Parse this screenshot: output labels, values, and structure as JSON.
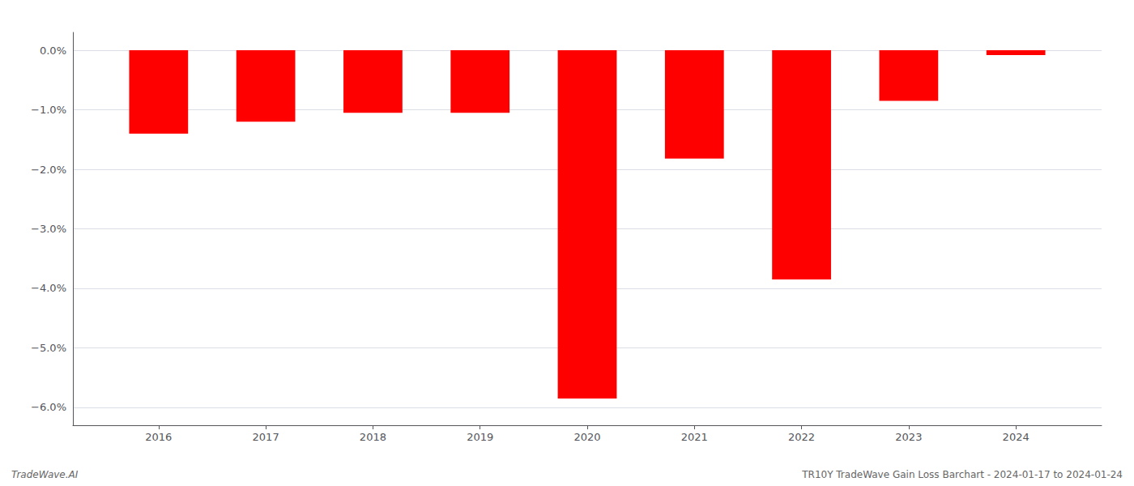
{
  "chart_data": {
    "type": "bar",
    "x": [
      2016,
      2017,
      2018,
      2019,
      2020,
      2021,
      2022,
      2023,
      2024
    ],
    "values": [
      -1.4,
      -1.2,
      -1.05,
      -1.05,
      -5.85,
      -1.82,
      -3.85,
      -0.85,
      -0.08
    ],
    "color": "#ff0000",
    "xlim": [
      2015.2,
      2024.8
    ],
    "xticks": [
      2016,
      2017,
      2018,
      2019,
      2020,
      2021,
      2022,
      2023,
      2024
    ],
    "ylim": [
      -6.3,
      0.3
    ],
    "yticks": [
      {
        "value": 0.0,
        "label": "0.0%"
      },
      {
        "value": -1.0,
        "label": "−1.0%"
      },
      {
        "value": -2.0,
        "label": "−2.0%"
      },
      {
        "value": -3.0,
        "label": "−3.0%"
      },
      {
        "value": -4.0,
        "label": "−4.0%"
      },
      {
        "value": -5.0,
        "label": "−5.0%"
      },
      {
        "value": -6.0,
        "label": "−6.0%"
      }
    ],
    "grid": true,
    "annotations": [
      "TradeWave.AI",
      "TR10Y TradeWave Gain Loss Barchart - 2024-01-17 to 2024-01-24"
    ]
  }
}
